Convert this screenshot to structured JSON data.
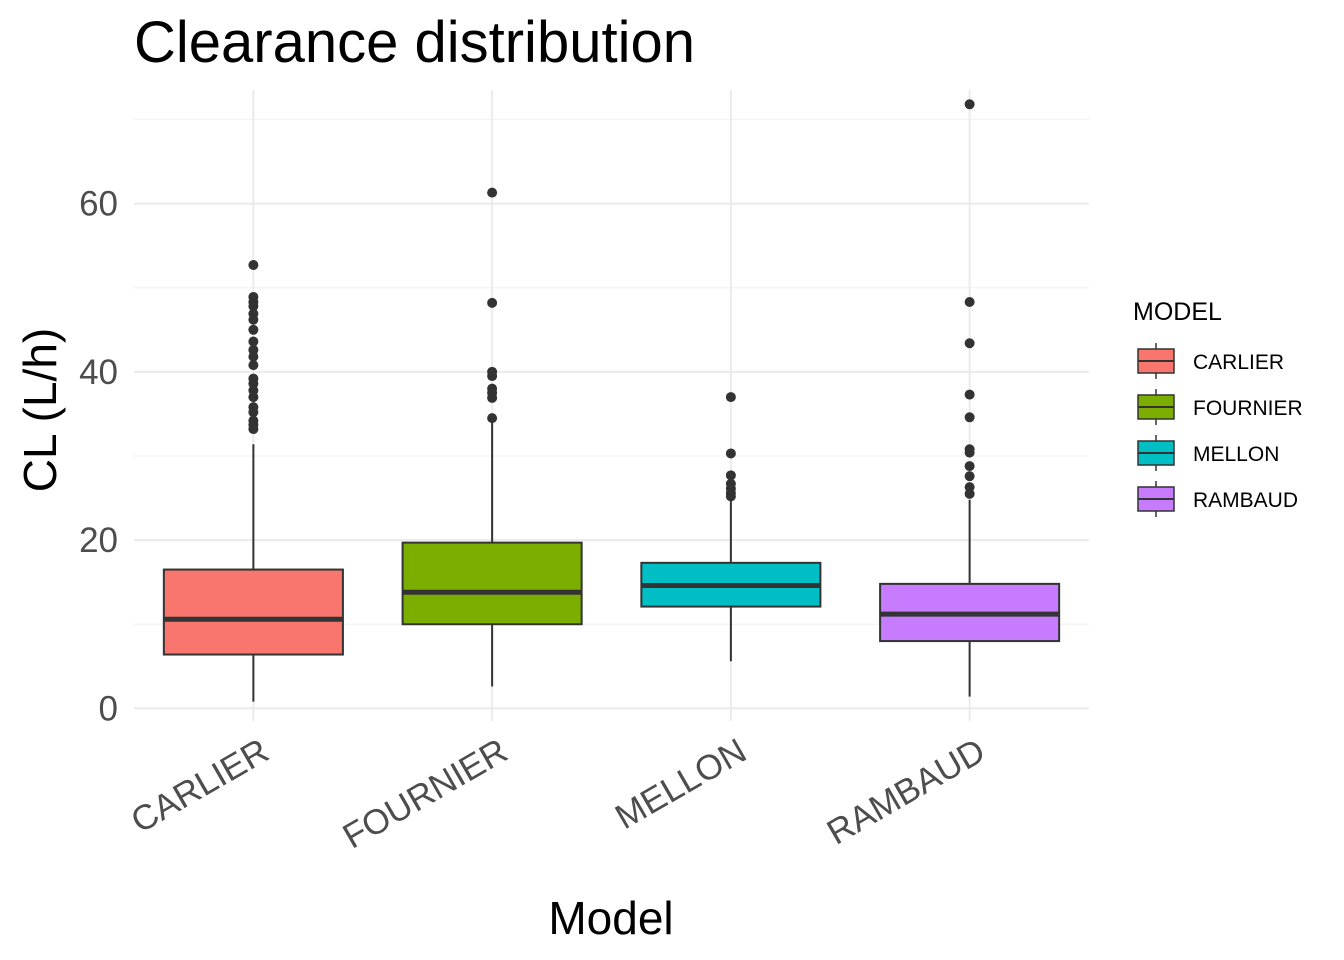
{
  "chart_data": {
    "type": "boxplot",
    "title": "Clearance distribution",
    "xlabel": "Model",
    "ylabel": "CL (L/h)",
    "ylim": [
      -1.5,
      73.5
    ],
    "yticks": [
      0,
      20,
      40,
      60
    ],
    "ytick_labels": [
      "0",
      "20",
      "40",
      "60"
    ],
    "grid": true,
    "legend": {
      "title": "MODEL",
      "position": "right",
      "entries": [
        "CARLIER",
        "FOURNIER",
        "MELLON",
        "RAMBAUD"
      ]
    },
    "categories": [
      "CARLIER",
      "FOURNIER",
      "MELLON",
      "RAMBAUD"
    ],
    "colors": [
      "#F8766D",
      "#7CAE00",
      "#00BFC4",
      "#C77CFF"
    ],
    "series": [
      {
        "name": "CARLIER",
        "min": 0.8,
        "q1": 6.4,
        "median": 10.6,
        "q3": 16.5,
        "max": 31.4,
        "outliers": [
          33.2,
          33.7,
          34.2,
          35.2,
          35.8,
          37.0,
          37.8,
          38.6,
          39.2,
          40.8,
          41.8,
          42.6,
          43.6,
          45.0,
          46.2,
          46.9,
          47.8,
          48.3,
          48.9,
          52.7
        ]
      },
      {
        "name": "FOURNIER",
        "min": 2.6,
        "q1": 10.0,
        "median": 13.8,
        "q3": 19.7,
        "max": 34.2,
        "outliers": [
          34.5,
          36.9,
          37.5,
          38.0,
          39.5,
          40.0,
          48.2,
          61.3
        ]
      },
      {
        "name": "MELLON",
        "min": 5.6,
        "q1": 12.1,
        "median": 14.6,
        "q3": 17.3,
        "max": 24.9,
        "outliers": [
          25.2,
          25.6,
          26.1,
          26.7,
          27.7,
          30.3,
          37.0
        ]
      },
      {
        "name": "RAMBAUD",
        "min": 1.4,
        "q1": 8.0,
        "median": 11.2,
        "q3": 14.8,
        "max": 24.8,
        "outliers": [
          25.5,
          26.3,
          27.6,
          28.8,
          30.4,
          30.8,
          34.6,
          37.3,
          43.4,
          48.3,
          71.8
        ]
      }
    ]
  }
}
